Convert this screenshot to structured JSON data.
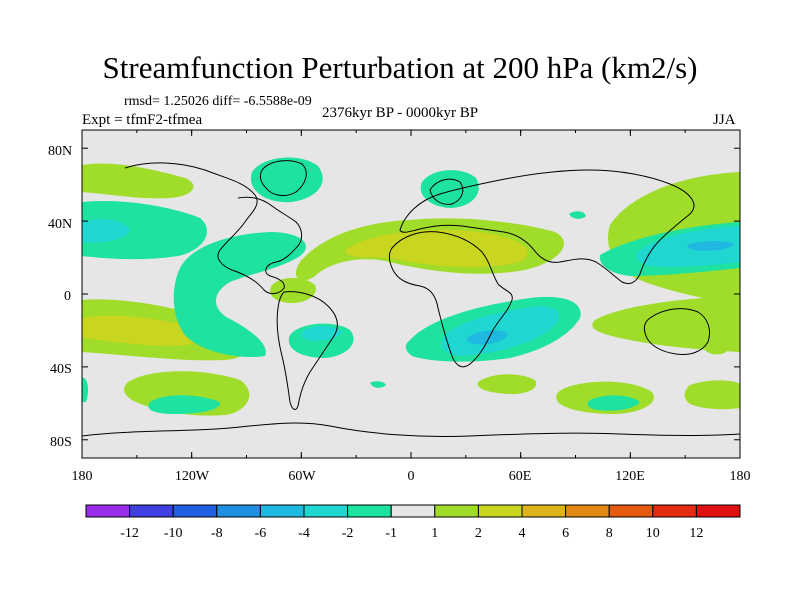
{
  "title": "Streamfunction Perturbation at 200 hPa (km2/s)",
  "stats": "rmsd= 1.25026 diff= -6.5588e-09",
  "experiment": "Expt = tfmF2-tfmea",
  "period": "2376kyr BP - 0000kyr BP",
  "season": "JJA",
  "map": {
    "lat_labels": [
      "80N",
      "40N",
      "0",
      "40S",
      "80S"
    ],
    "lon_labels": [
      "180",
      "120W",
      "60W",
      "0",
      "60E",
      "120E",
      "180"
    ],
    "background_color": "#e6e6e6"
  },
  "colorbar": {
    "labels": [
      "-12",
      "-10",
      "-8",
      "-6",
      "-4",
      "-2",
      "-1",
      "1",
      "2",
      "4",
      "6",
      "8",
      "10",
      "12"
    ],
    "colors": [
      "#9a2ee8",
      "#3f3fe4",
      "#1f5fe0",
      "#1f8fe0",
      "#1fb8e0",
      "#1fd6d0",
      "#1ee2a0",
      "#e6e6e6",
      "#a0dc2a",
      "#c8d61f",
      "#dcb41a",
      "#e38a14",
      "#e45a10",
      "#e42a10",
      "#e01010"
    ]
  }
}
